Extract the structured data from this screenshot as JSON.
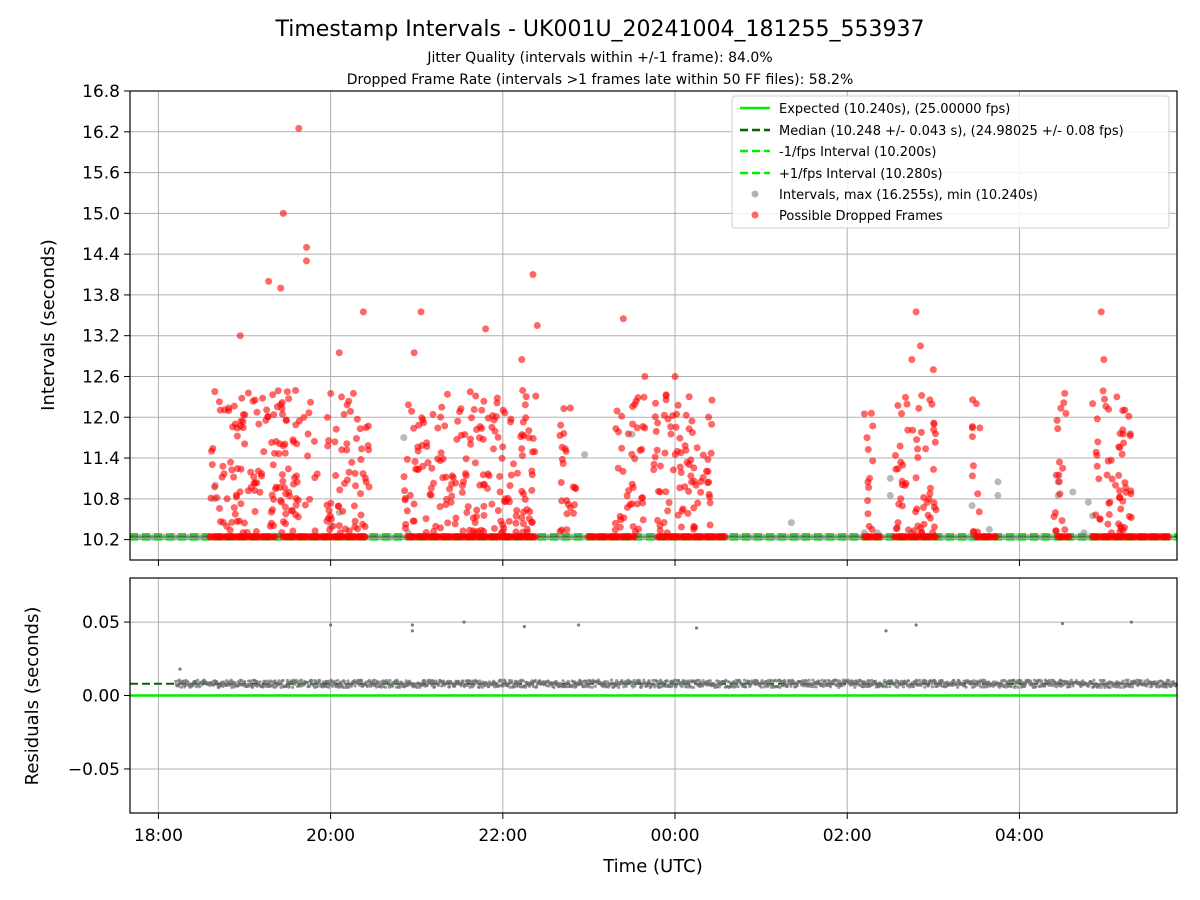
{
  "figure": {
    "title": "Timestamp Intervals - UK001U_20241004_181255_553937",
    "subtitle_1": "Jitter Quality (intervals within +/-1 frame): 84.0%",
    "subtitle_2": "Dropped Frame Rate (intervals >1 frames late within 50 FF files): 58.2%"
  },
  "chart_data": [
    {
      "type": "scatter",
      "panel": "top",
      "xlabel": "",
      "ylabel": "Intervals (seconds)",
      "x_unit": "hours since 18:00 UTC",
      "xlim": [
        -0.33,
        11.83
      ],
      "ylim": [
        9.9,
        16.8
      ],
      "y_ticks": [
        10.2,
        10.8,
        11.4,
        12.0,
        12.6,
        13.2,
        13.8,
        14.4,
        15.0,
        15.6,
        16.2,
        16.8
      ],
      "y_tick_labels": [
        "10.2",
        "10.8",
        "11.4",
        "12.0",
        "12.6",
        "13.2",
        "13.8",
        "14.4",
        "15.0",
        "15.6",
        "16.2",
        "16.8"
      ],
      "x_ticks": [
        0,
        2,
        4,
        6,
        8,
        10
      ],
      "grid": true,
      "legend_position": "top-right",
      "legend": [
        {
          "label": "Expected (10.240s), (25.00000 fps)",
          "color": "#00ee00",
          "style": "solid"
        },
        {
          "label": "Median (10.248 +/- 0.043 s), (24.98025 +/- 0.08 fps)",
          "color": "#006400",
          "style": "dashed"
        },
        {
          "label": "-1/fps Interval (10.200s)",
          "color": "#00ee00",
          "style": "dashed"
        },
        {
          "label": "+1/fps Interval (10.280s)",
          "color": "#00ee00",
          "style": "dashed"
        },
        {
          "label": "Intervals, max (16.255s), min (10.240s)",
          "color": "#808080",
          "style": "marker"
        },
        {
          "label": "Possible Dropped Frames",
          "color": "#ff0000",
          "style": "marker"
        }
      ],
      "lines": {
        "expected": 10.24,
        "median": 10.248,
        "minus_1_fps": 10.2,
        "plus_1_fps": 10.28
      },
      "baseline_segments_dropped": [
        [
          0.6,
          1.35
        ],
        [
          1.45,
          2.4
        ],
        [
          2.9,
          4.4
        ],
        [
          5.0,
          5.55
        ],
        [
          5.8,
          6.6
        ],
        [
          8.2,
          8.4
        ],
        [
          8.55,
          9.05
        ],
        [
          9.5,
          9.75
        ],
        [
          10.45,
          10.6
        ],
        [
          10.85,
          11.75
        ]
      ],
      "gray_points": [
        {
          "x": 0.65,
          "y": 10.8
        },
        {
          "x": 0.66,
          "y": 11.0
        },
        {
          "x": 2.0,
          "y": 10.4
        },
        {
          "x": 2.1,
          "y": 10.6
        },
        {
          "x": 2.85,
          "y": 11.7
        },
        {
          "x": 2.9,
          "y": 10.3
        },
        {
          "x": 4.95,
          "y": 11.45
        },
        {
          "x": 5.5,
          "y": 11.75
        },
        {
          "x": 7.35,
          "y": 10.45
        },
        {
          "x": 8.2,
          "y": 10.3
        },
        {
          "x": 8.35,
          "y": 10.3
        },
        {
          "x": 8.5,
          "y": 11.1
        },
        {
          "x": 8.5,
          "y": 10.85
        },
        {
          "x": 8.75,
          "y": 10.3
        },
        {
          "x": 9.45,
          "y": 10.7
        },
        {
          "x": 9.65,
          "y": 10.35
        },
        {
          "x": 9.75,
          "y": 11.05
        },
        {
          "x": 9.75,
          "y": 10.85
        },
        {
          "x": 10.45,
          "y": 11.05
        },
        {
          "x": 10.45,
          "y": 10.85
        },
        {
          "x": 10.62,
          "y": 10.9
        },
        {
          "x": 10.75,
          "y": 10.3
        },
        {
          "x": 10.85,
          "y": 10.55
        },
        {
          "x": 10.8,
          "y": 10.75
        }
      ],
      "red_points_highlight": [
        {
          "x": 1.63,
          "y": 16.25
        },
        {
          "x": 1.45,
          "y": 15.0
        },
        {
          "x": 1.72,
          "y": 14.5
        },
        {
          "x": 1.72,
          "y": 14.3
        },
        {
          "x": 1.28,
          "y": 14.0
        },
        {
          "x": 1.42,
          "y": 13.9
        },
        {
          "x": 4.35,
          "y": 14.1
        },
        {
          "x": 3.05,
          "y": 13.55
        },
        {
          "x": 2.38,
          "y": 13.55
        },
        {
          "x": 4.4,
          "y": 13.35
        },
        {
          "x": 5.4,
          "y": 13.45
        },
        {
          "x": 0.95,
          "y": 13.2
        },
        {
          "x": 8.8,
          "y": 13.55
        },
        {
          "x": 10.95,
          "y": 13.55
        },
        {
          "x": 3.8,
          "y": 13.3
        },
        {
          "x": 2.1,
          "y": 12.95
        },
        {
          "x": 2.97,
          "y": 12.95
        },
        {
          "x": 8.85,
          "y": 13.05
        },
        {
          "x": 8.75,
          "y": 12.85
        },
        {
          "x": 10.98,
          "y": 12.85
        },
        {
          "x": 8.2,
          "y": 12.05
        },
        {
          "x": 9.5,
          "y": 12.2
        },
        {
          "x": 9.0,
          "y": 12.7
        },
        {
          "x": 11.2,
          "y": 12.1
        },
        {
          "x": 10.85,
          "y": 12.2
        },
        {
          "x": 4.22,
          "y": 12.85
        },
        {
          "x": 5.65,
          "y": 12.6
        },
        {
          "x": 6.0,
          "y": 12.6
        }
      ],
      "red_cluster_ranges": [
        [
          0.6,
          1.85
        ],
        [
          1.95,
          2.45
        ],
        [
          2.85,
          4.4
        ],
        [
          4.65,
          4.85
        ],
        [
          5.3,
          5.65
        ],
        [
          5.75,
          6.45
        ],
        [
          8.2,
          8.3
        ],
        [
          8.55,
          9.05
        ],
        [
          9.45,
          9.55
        ],
        [
          10.4,
          10.55
        ],
        [
          10.85,
          11.3
        ]
      ]
    },
    {
      "type": "scatter",
      "panel": "bottom",
      "xlabel": "Time (UTC)",
      "ylabel": "Residuals (seconds)",
      "x_unit": "hours since 18:00 UTC",
      "xlim": [
        -0.33,
        11.83
      ],
      "ylim": [
        -0.08,
        0.08
      ],
      "y_ticks": [
        -0.05,
        0.0,
        0.05
      ],
      "y_tick_labels": [
        "−0.05",
        "0.00",
        "0.05"
      ],
      "x_ticks": [
        0,
        2,
        4,
        6,
        8,
        10
      ],
      "x_tick_labels": [
        "18:00",
        "20:00",
        "22:00",
        "00:00",
        "02:00",
        "04:00"
      ],
      "grid": true,
      "lines": {
        "expected": 0.0,
        "median": 0.008
      },
      "residual_band": {
        "x_start": 0.2,
        "x_end": 11.83,
        "center": 0.008,
        "spread": 0.0025
      },
      "outliers": [
        {
          "x": 0.25,
          "y": 0.018
        },
        {
          "x": 2.0,
          "y": 0.048
        },
        {
          "x": 2.95,
          "y": 0.048
        },
        {
          "x": 2.95,
          "y": 0.044
        },
        {
          "x": 3.55,
          "y": 0.05
        },
        {
          "x": 4.25,
          "y": 0.047
        },
        {
          "x": 4.88,
          "y": 0.048
        },
        {
          "x": 6.25,
          "y": 0.046
        },
        {
          "x": 8.45,
          "y": 0.044
        },
        {
          "x": 8.8,
          "y": 0.048
        },
        {
          "x": 10.5,
          "y": 0.049
        },
        {
          "x": 11.3,
          "y": 0.05
        }
      ]
    }
  ]
}
